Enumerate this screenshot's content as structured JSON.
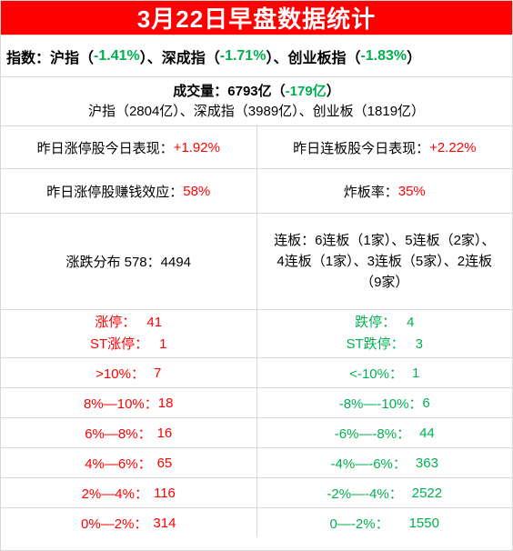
{
  "title": "3月22日早盘数据统计",
  "index": {
    "prefix": "指数：沪指（",
    "sh": "-1.41%",
    "sep1": "）、深成指（",
    "sz": "-1.71%",
    "sep2": "）、创业板指（",
    "cy": "-1.83%",
    "suffix": "）"
  },
  "volume": {
    "label": "成交量：6793亿（",
    "change": "-179亿",
    "close": "）",
    "breakdown": "沪指（2804亿）、深成指（3989亿）、创业板（1819亿）"
  },
  "perf": {
    "left_label": "昨日涨停股今日表现：",
    "left_value": "+1.92%",
    "right_label": "昨日连板股今日表现：",
    "right_value": "+2.22%"
  },
  "profit": {
    "left_label": "昨日涨停股赚钱效应：",
    "left_value": "58%",
    "right_label": "炸板率：",
    "right_value": "35%"
  },
  "dist": {
    "left": "涨跌分布 578：4494",
    "boards_line1": "连板：6连板（1家）、5连板（2家）、",
    "boards_line2": "4连板（1家）、3连板（5家）、2连板",
    "boards_line3": "（9家）"
  },
  "limits": {
    "up_label": "涨停：",
    "up_value": "41",
    "st_up_label": "ST涨停：",
    "st_up_value": "1",
    "down_label": "跌停：",
    "down_value": "4",
    "st_down_label": "ST跌停：",
    "st_down_value": "3"
  },
  "bands": [
    {
      "left_label": ">10%：",
      "left_value": "7",
      "right_label": "<-10%：",
      "right_value": "1"
    },
    {
      "left_label": "8%—10%：",
      "left_value": "18",
      "right_label": "-8%—-10%：",
      "right_value": "6"
    },
    {
      "left_label": "6%—8%：",
      "left_value": "16",
      "right_label": "-6%—-8%：",
      "right_value": "44"
    },
    {
      "left_label": "4%—6%：",
      "left_value": "65",
      "right_label": "-4%—-6%：",
      "right_value": "363"
    },
    {
      "left_label": "2%—4%：",
      "left_value": "116",
      "right_label": "-2%—-4%：",
      "right_value": "2522"
    },
    {
      "left_label": "0%—2%：",
      "left_value": "314",
      "right_label": "0—-2%：",
      "right_value": "1550"
    }
  ],
  "colors": {
    "title_bg": "#ff0000",
    "up": "#ff0000",
    "down": "#00b050",
    "border": "#d8d8d8"
  }
}
